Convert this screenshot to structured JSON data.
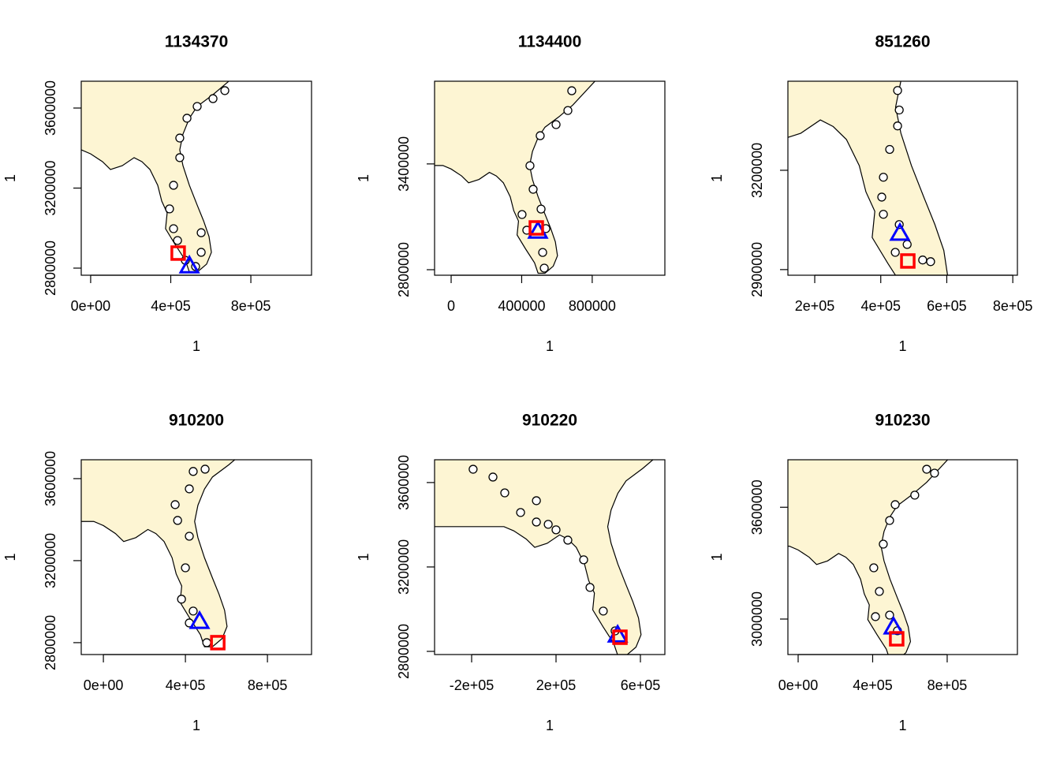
{
  "chart_data": [
    {
      "type": "scatter",
      "title": "1134370",
      "x_label": "1",
      "y_label": "1",
      "map_fill": "#fdf5d3",
      "xlim": [
        -47000,
        1103000
      ],
      "ylim": [
        2764500,
        3734000
      ],
      "xticks": [
        {
          "value": 0,
          "label": "0e+00"
        },
        {
          "value": 400000,
          "label": "4e+05"
        },
        {
          "value": 800000,
          "label": "8e+05"
        }
      ],
      "yticks": [
        2800000,
        3200000,
        3600000
      ],
      "series": [
        {
          "marker": "circle",
          "color": "#000000",
          "fill": "#ffffff",
          "x": [
            670000,
            611000,
            532000,
            481000,
            445000,
            445000,
            414000,
            394000,
            414000,
            434000,
            552000,
            552000,
            524000,
            473000
          ],
          "y": [
            3687000,
            3647000,
            3608000,
            3549000,
            3450000,
            3352000,
            3214000,
            3096000,
            2997000,
            2938000,
            2977000,
            2879000,
            2808000,
            2839000
          ]
        },
        {
          "marker": "triangle",
          "color": "#0000ff",
          "x": [
            493000
          ],
          "y": [
            2812000
          ]
        },
        {
          "marker": "square",
          "color": "#ff0000",
          "x": [
            437000
          ],
          "y": [
            2875000
          ]
        }
      ]
    },
    {
      "type": "scatter",
      "title": "1134400",
      "x_label": "1",
      "y_label": "1",
      "map_fill": "#fdf5d3",
      "xlim": [
        -94000,
        1212000
      ],
      "ylim": [
        2768700,
        3869000
      ],
      "xticks": [
        0,
        400000,
        800000
      ],
      "yticks": [
        2800000,
        3400000
      ],
      "series": [
        {
          "marker": "circle",
          "color": "#000000",
          "fill": "#ffffff",
          "x": [
            684000,
            662000,
            595000,
            505000,
            447000,
            465000,
            510000,
            537000,
            402000,
            429000,
            519000,
            528000
          ],
          "y": [
            3815000,
            3703000,
            3623000,
            3560000,
            3390000,
            3256000,
            3144000,
            3033000,
            3113000,
            3024000,
            2898000,
            2809000
          ]
        },
        {
          "marker": "triangle",
          "color": "#0000ff",
          "x": [
            492000
          ],
          "y": [
            3019000
          ]
        },
        {
          "marker": "square",
          "color": "#ff0000",
          "x": [
            483000
          ],
          "y": [
            3037000
          ]
        }
      ]
    },
    {
      "type": "scatter",
      "title": "851260",
      "x_label": "1",
      "y_label": "1",
      "map_fill": "#fdf5d3",
      "xlim": [
        118700,
        814000
      ],
      "ylim": [
        2883000,
        3469000
      ],
      "xticks": [
        {
          "value": 200000,
          "label": "2e+05"
        },
        {
          "value": 400000,
          "label": "4e+05"
        },
        {
          "value": 600000,
          "label": "6e+05"
        },
        {
          "value": 800000,
          "label": "8e+05"
        }
      ],
      "yticks": [
        2900000,
        3200000
      ],
      "series": [
        {
          "marker": "circle",
          "color": "#000000",
          "fill": "#ffffff",
          "x": [
            451000,
            456000,
            451000,
            427000,
            408000,
            403000,
            408000,
            456000,
            480000,
            527000,
            551000,
            444000
          ],
          "y": [
            3441000,
            3382000,
            3334000,
            3263000,
            3179000,
            3119000,
            3067000,
            3036000,
            2976000,
            2929000,
            2924000,
            2952000
          ]
        },
        {
          "marker": "triangle",
          "color": "#0000ff",
          "x": [
            458000
          ],
          "y": [
            3010000
          ]
        },
        {
          "marker": "square",
          "color": "#ff0000",
          "x": [
            482000
          ],
          "y": [
            2926000
          ]
        }
      ]
    },
    {
      "type": "scatter",
      "title": "910200",
      "x_label": "1",
      "y_label": "1",
      "map_fill": "#fdf5d3",
      "xlim": [
        -108000,
        1015000
      ],
      "ylim": [
        2742000,
        3692000
      ],
      "xticks": [
        {
          "value": 0,
          "label": "0e+00"
        },
        {
          "value": 400000,
          "label": "4e+05"
        },
        {
          "value": 800000,
          "label": "8e+05"
        }
      ],
      "yticks": [
        2800000,
        3200000,
        3600000
      ],
      "series": [
        {
          "marker": "circle",
          "color": "#000000",
          "fill": "#ffffff",
          "x": [
            496000,
            438000,
            419000,
            350000,
            362000,
            419000,
            400000,
            381000,
            419000,
            504000,
            438000
          ],
          "y": [
            3646000,
            3635000,
            3550000,
            3473000,
            3396000,
            3319000,
            3165000,
            3012000,
            2896000,
            2800000,
            2954000
          ]
        },
        {
          "marker": "triangle",
          "color": "#0000ff",
          "x": [
            469000
          ],
          "y": [
            2904000
          ]
        },
        {
          "marker": "square",
          "color": "#ff0000",
          "x": [
            558000
          ],
          "y": [
            2800000
          ]
        }
      ]
    },
    {
      "type": "scatter",
      "title": "910220",
      "x_label": "1",
      "y_label": "1",
      "map_fill": "#fdf5d3",
      "xlim": [
        -375700,
        715900
      ],
      "ylim": [
        2785000,
        3708000
      ],
      "xticks": [
        {
          "value": -200000,
          "label": "-2e+05"
        },
        {
          "value": 200000,
          "label": "2e+05"
        },
        {
          "value": 600000,
          "label": "6e+05"
        }
      ],
      "yticks": [
        2800000,
        3200000,
        3600000
      ],
      "series": [
        {
          "marker": "circle",
          "color": "#000000",
          "fill": "#ffffff",
          "x": [
            -193000,
            -99000,
            -43000,
            32000,
            107000,
            200000,
            256000,
            331000,
            361000,
            424000,
            480000,
            107000,
            163000
          ],
          "y": [
            3663000,
            3626000,
            3551000,
            3458000,
            3413000,
            3376000,
            3327000,
            3234000,
            3103000,
            2991000,
            2897000,
            3514000,
            3402000
          ]
        },
        {
          "marker": "triangle",
          "color": "#0000ff",
          "x": [
            492000
          ],
          "y": [
            2878000
          ]
        },
        {
          "marker": "square",
          "color": "#ff0000",
          "x": [
            503000
          ],
          "y": [
            2867000
          ]
        }
      ]
    },
    {
      "type": "scatter",
      "title": "910230",
      "x_label": "1",
      "y_label": "1",
      "map_fill": "#fdf5d3",
      "xlim": [
        -55000,
        1177000
      ],
      "ylim": [
        2809500,
        3855000
      ],
      "xticks": [
        {
          "value": 0,
          "label": "0e+00"
        },
        {
          "value": 400000,
          "label": "4e+05"
        },
        {
          "value": 800000,
          "label": "8e+05"
        }
      ],
      "yticks": [
        3000000,
        3600000
      ],
      "series": [
        {
          "marker": "circle",
          "color": "#000000",
          "fill": "#ffffff",
          "x": [
            690000,
            732000,
            626000,
            521000,
            491000,
            457000,
            406000,
            436000,
            491000,
            533000,
            415000
          ],
          "y": [
            3804000,
            3783000,
            3665000,
            3614000,
            3529000,
            3402000,
            3275000,
            3148000,
            3021000,
            2937000,
            3013000
          ]
        },
        {
          "marker": "triangle",
          "color": "#0000ff",
          "x": [
            512000
          ],
          "y": [
            2958000
          ]
        },
        {
          "marker": "square",
          "color": "#ff0000",
          "x": [
            529000
          ],
          "y": [
            2894000
          ]
        }
      ]
    }
  ]
}
